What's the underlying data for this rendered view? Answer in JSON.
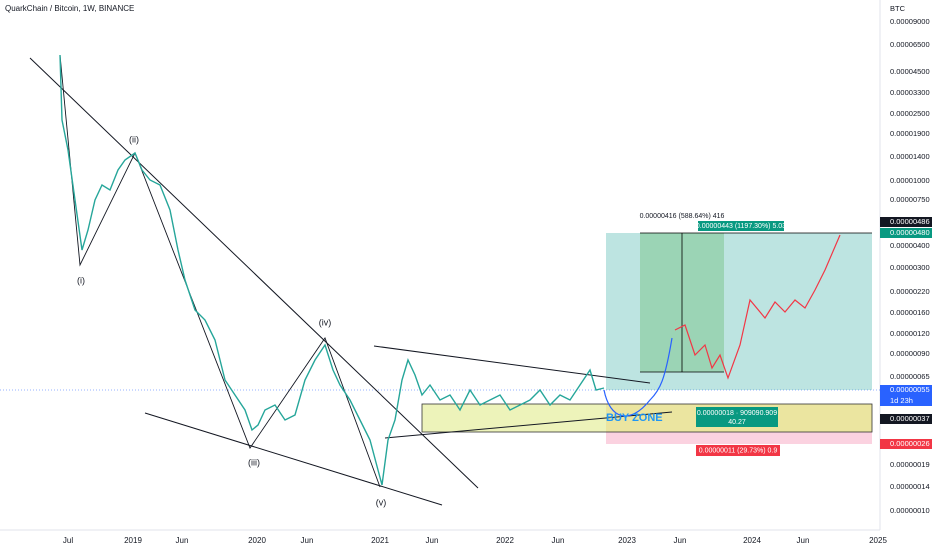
{
  "header": {
    "title": "QuarkChain / Bitcoin, 1W, BINANCE"
  },
  "price_axis": {
    "currency": "BTC",
    "labels": [
      "0.00009000",
      "0.00006500",
      "0.00004500",
      "0.00003300",
      "0.00002500",
      "0.00001900",
      "0.00001400",
      "0.00001000",
      "0.00000750",
      "0.00000486",
      "0.00000480",
      "0.00000400",
      "0.00000300",
      "0.00000220",
      "0.00000160",
      "0.00000120",
      "0.00000090",
      "0.00000065",
      "0.00000055",
      "1d 23h",
      "0.00000037",
      "0.00000026",
      "0.00000019",
      "0.00000014",
      "0.00000010"
    ]
  },
  "time_axis": {
    "labels": [
      "Jul",
      "2019",
      "Jun",
      "2020",
      "Jun",
      "2021",
      "Jun",
      "2022",
      "Jun",
      "2023",
      "Jun",
      "2024",
      "Jun",
      "2025"
    ]
  },
  "annotations": {
    "waves": [
      "(i)",
      "(ii)",
      "(iii)",
      "(iv)",
      "(v)"
    ],
    "buy_zone": "BUY ZONE",
    "measure": "0.00000416 (588.64%) 416",
    "target": "0.00000443 (1197.30%) 5.03",
    "entry": [
      "0.00000018 · 909090.909",
      "40.27"
    ],
    "stop": "0.00000011 (29.73%) 0.9"
  }
}
